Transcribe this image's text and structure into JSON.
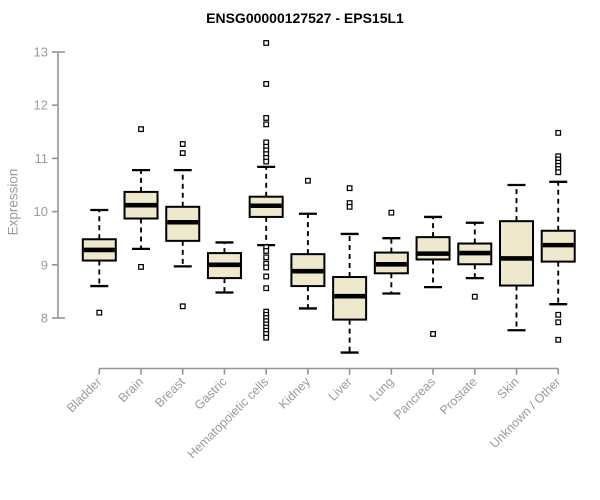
{
  "chart_data": {
    "type": "boxplot",
    "title": "ENSG00000127527 - EPS15L1",
    "ylabel": "Expression",
    "xlabel": "",
    "ylim": [
      7.2,
      13.3
    ],
    "yticks": [
      8,
      9,
      10,
      11,
      12,
      13
    ],
    "grid": false,
    "legend": "none",
    "colors": {
      "box_fill": "#EEE8CD",
      "box_stroke": "#000000",
      "median": "#000000",
      "outlier_stroke": "#000000",
      "outlier_fill": "#ffffff",
      "axis": "#949494",
      "tick_label": "#9b9b9b",
      "title_text": "#000000",
      "background": "#ffffff"
    },
    "whisker_style": "dashed",
    "outlier_marker": "open-square",
    "categories": [
      "Bladder",
      "Brain",
      "Breast",
      "Gastric",
      "Hematopoietic cells",
      "Kidney",
      "Liver",
      "Lung",
      "Pancreas",
      "Prostate",
      "Skin",
      "Unknown / Other"
    ],
    "series": [
      {
        "name": "Bladder",
        "whisker_low": 8.6,
        "q1": 9.08,
        "median": 9.28,
        "q3": 9.48,
        "whisker_high": 10.03,
        "outliers": [
          8.1
        ]
      },
      {
        "name": "Brain",
        "whisker_low": 9.3,
        "q1": 9.87,
        "median": 10.12,
        "q3": 10.37,
        "whisker_high": 10.78,
        "outliers": [
          11.55,
          8.96
        ]
      },
      {
        "name": "Breast",
        "whisker_low": 8.97,
        "q1": 9.45,
        "median": 9.8,
        "q3": 10.09,
        "whisker_high": 10.78,
        "outliers": [
          11.27,
          11.1,
          8.22
        ]
      },
      {
        "name": "Gastric",
        "whisker_low": 8.48,
        "q1": 8.75,
        "median": 9.0,
        "q3": 9.22,
        "whisker_high": 9.42,
        "outliers": []
      },
      {
        "name": "Hematopoietic cells",
        "whisker_low": 9.37,
        "q1": 9.9,
        "median": 10.11,
        "q3": 10.28,
        "whisker_high": 10.84,
        "outliers": [
          13.17,
          12.4,
          11.76,
          11.64,
          11.3,
          11.22,
          11.15,
          11.08,
          11.01,
          10.94,
          9.33,
          9.26,
          9.14,
          9.02,
          8.95,
          8.78,
          8.56,
          8.12,
          8.06,
          8.0,
          7.94,
          7.88,
          7.82,
          7.76,
          7.7,
          7.63
        ]
      },
      {
        "name": "Kidney",
        "whisker_low": 8.18,
        "q1": 8.6,
        "median": 8.88,
        "q3": 9.2,
        "whisker_high": 9.96,
        "outliers": [
          10.58
        ]
      },
      {
        "name": "Liver",
        "whisker_low": 7.35,
        "q1": 7.97,
        "median": 8.41,
        "q3": 8.77,
        "whisker_high": 9.58,
        "outliers": [
          10.44,
          10.16,
          10.09
        ]
      },
      {
        "name": "Lung",
        "whisker_low": 8.46,
        "q1": 8.84,
        "median": 9.01,
        "q3": 9.23,
        "whisker_high": 9.5,
        "outliers": [
          9.98
        ]
      },
      {
        "name": "Pancreas",
        "whisker_low": 8.58,
        "q1": 9.1,
        "median": 9.21,
        "q3": 9.52,
        "whisker_high": 9.9,
        "outliers": [
          7.7
        ]
      },
      {
        "name": "Prostate",
        "whisker_low": 8.75,
        "q1": 9.01,
        "median": 9.22,
        "q3": 9.4,
        "whisker_high": 9.79,
        "outliers": [
          8.4
        ]
      },
      {
        "name": "Skin",
        "whisker_low": 7.77,
        "q1": 8.61,
        "median": 9.12,
        "q3": 9.82,
        "whisker_high": 10.5,
        "outliers": []
      },
      {
        "name": "Unknown / Other",
        "whisker_low": 8.26,
        "q1": 9.06,
        "median": 9.37,
        "q3": 9.64,
        "whisker_high": 10.56,
        "outliers": [
          11.48,
          11.04,
          10.98,
          10.92,
          10.86,
          10.8,
          10.74,
          8.06,
          7.92,
          7.59
        ]
      }
    ]
  }
}
